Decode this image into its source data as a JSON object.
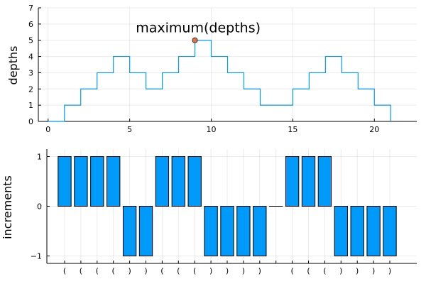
{
  "chart_data": [
    {
      "type": "line",
      "subtype": "step",
      "ylabel": "depths",
      "xlim": [
        -0.6,
        22.6
      ],
      "ylim": [
        0,
        7
      ],
      "xticks": [
        0,
        5,
        10,
        15,
        20
      ],
      "yticks": [
        0,
        1,
        2,
        3,
        4,
        5,
        6,
        7
      ],
      "grid": true,
      "series": [
        {
          "color": "#009AFA",
          "x": [
            0,
            1,
            2,
            3,
            4,
            5,
            6,
            7,
            8,
            9,
            10,
            11,
            12,
            13,
            14,
            15,
            16,
            17,
            18,
            19,
            20,
            21
          ],
          "y": [
            0,
            1,
            2,
            3,
            4,
            3,
            2,
            3,
            4,
            5,
            4,
            3,
            2,
            1,
            1,
            2,
            3,
            4,
            3,
            2,
            1,
            0
          ]
        }
      ],
      "marker": {
        "x": 9,
        "y": 5,
        "color": "#E26F46"
      },
      "annotation": {
        "text": "maximum(depths)",
        "x": 9.2,
        "y": 5.8
      }
    },
    {
      "type": "bar",
      "ylabel": "increments",
      "ylim": [
        -1.15,
        1.15
      ],
      "yticks": [
        -1,
        0,
        1
      ],
      "grid": true,
      "bar_color": "#009AFA",
      "categories": [
        "(",
        "(",
        "(",
        "(",
        ")",
        ")",
        "(",
        "(",
        "(",
        ")",
        ")",
        ")",
        ")",
        " ",
        "(",
        "(",
        "(",
        ")",
        ")",
        ")",
        ")"
      ],
      "values": [
        1,
        1,
        1,
        1,
        -1,
        -1,
        1,
        1,
        1,
        -1,
        -1,
        -1,
        -1,
        0,
        1,
        1,
        1,
        -1,
        -1,
        -1,
        -1
      ]
    }
  ]
}
